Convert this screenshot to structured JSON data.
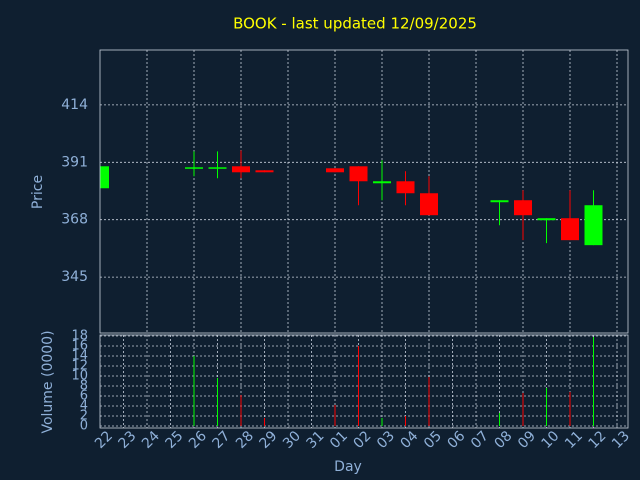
{
  "chart_data": [
    {
      "type": "candlestick",
      "title": "BOOK - last updated 12/09/2025",
      "ylabel": "Price",
      "categories": [
        "22",
        "23",
        "24",
        "25",
        "26",
        "27",
        "28",
        "29",
        "30",
        "31",
        "01",
        "02",
        "03",
        "04",
        "05",
        "06",
        "07",
        "08",
        "09",
        "10",
        "11",
        "12",
        "13"
      ],
      "open": [
        380.6,
        null,
        null,
        null,
        388.6,
        388.6,
        389.4,
        387.8,
        null,
        null,
        388.6,
        389.4,
        382.6,
        383.4,
        378.6,
        null,
        null,
        375,
        375.8,
        367.8,
        368.6,
        357.8,
        null
      ],
      "high": [
        389.4,
        null,
        null,
        null,
        395.4,
        395.4,
        395.8,
        387.8,
        null,
        null,
        388.6,
        389.4,
        391.8,
        387.4,
        385.4,
        null,
        null,
        375.8,
        379.8,
        368.6,
        379.8,
        379.8,
        null
      ],
      "low": [
        380.6,
        null,
        null,
        null,
        385.4,
        384.6,
        384.6,
        387,
        null,
        null,
        387,
        373.8,
        375.8,
        373.8,
        369.8,
        null,
        null,
        365.8,
        359.8,
        358.6,
        359.8,
        357.8,
        null
      ],
      "close": [
        389.4,
        null,
        null,
        null,
        389,
        389,
        387,
        387,
        null,
        null,
        387,
        383.4,
        383.4,
        378.6,
        369.8,
        null,
        null,
        375.8,
        369.8,
        368.6,
        359.8,
        373.8,
        null
      ],
      "up_color": "#00ff00",
      "down_color": "#ff0000",
      "ylim": [
        322.6,
        436
      ],
      "yticks": [
        345,
        368,
        391,
        414
      ],
      "grid": true
    },
    {
      "type": "bar",
      "ylabel": "Volume (0000)",
      "xlabel": "Day",
      "categories": [
        "22",
        "23",
        "24",
        "25",
        "26",
        "27",
        "28",
        "29",
        "30",
        "31",
        "01",
        "02",
        "03",
        "04",
        "05",
        "06",
        "07",
        "08",
        "09",
        "10",
        "11",
        "12",
        "13"
      ],
      "values": [
        null,
        null,
        null,
        null,
        14,
        9.6,
        6.2,
        1.6,
        null,
        null,
        4.2,
        16,
        1.6,
        2,
        9.8,
        null,
        null,
        2.6,
        6.6,
        7.6,
        6.8,
        17.8,
        null
      ],
      "ylim": [
        -0.4,
        18.2
      ],
      "yticks": [
        0,
        2,
        4,
        6,
        8,
        10,
        12,
        14,
        16,
        18
      ],
      "grid": true
    }
  ]
}
